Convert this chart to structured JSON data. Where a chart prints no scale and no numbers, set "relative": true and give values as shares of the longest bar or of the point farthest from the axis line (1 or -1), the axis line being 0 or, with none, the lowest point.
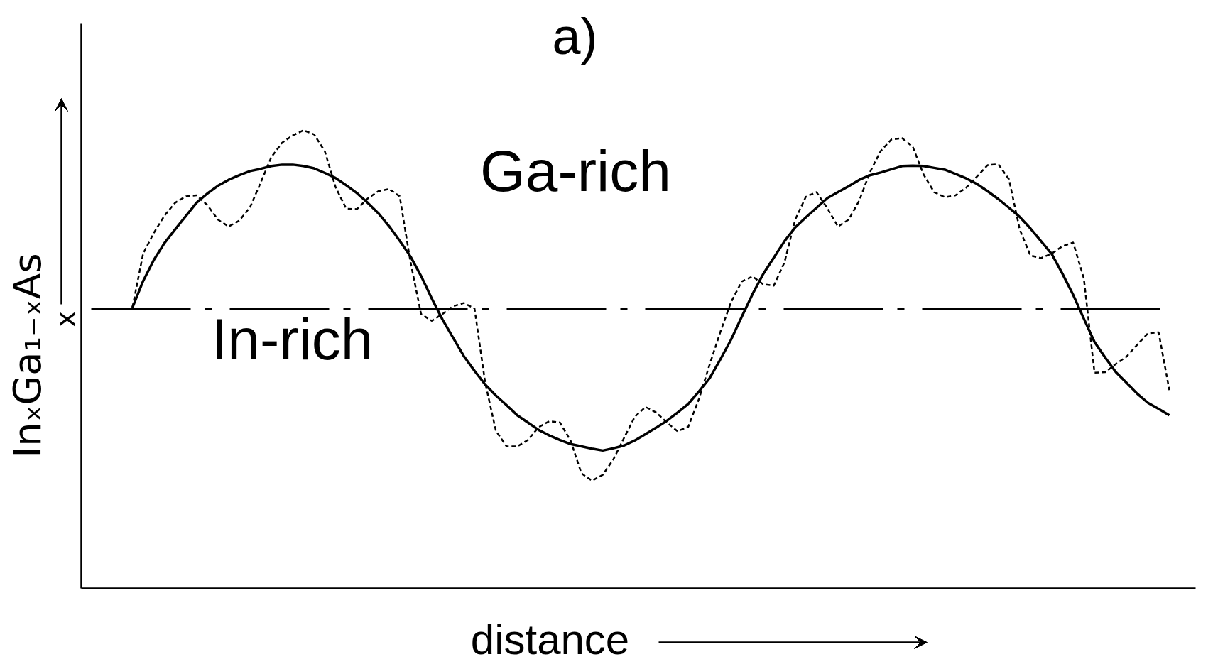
{
  "chart_data": {
    "type": "line",
    "title": "a)",
    "xlabel": "distance",
    "ylabel": "InₓGa₁₋ₓAs",
    "annotations": [
      "Ga-rich",
      "In-rich",
      "x"
    ],
    "relative": true,
    "categories": [
      null,
      null,
      null,
      null,
      null,
      null,
      null,
      null,
      null,
      null,
      null,
      null,
      null,
      null,
      null,
      null,
      null,
      null,
      null,
      null,
      null,
      null,
      null,
      null,
      null,
      null,
      null,
      null,
      null,
      null,
      null,
      null,
      null,
      null,
      null,
      null,
      null,
      null,
      null,
      null,
      null,
      null,
      null,
      null,
      null,
      null,
      null,
      null,
      null,
      null,
      null,
      null,
      null,
      null,
      null,
      null,
      null,
      null,
      null,
      null,
      null,
      null,
      null,
      null,
      null,
      null,
      null,
      null,
      null,
      null,
      null,
      null,
      null,
      null,
      null,
      null,
      null,
      null,
      null,
      null,
      null,
      null,
      null,
      null,
      null,
      null,
      null,
      null,
      null,
      null,
      null,
      null,
      null,
      null,
      null,
      null,
      null,
      null
    ],
    "series": [
      {
        "color": "#000000",
        "line_style": "solid",
        "values": [
          0.613,
          0.671,
          0.717,
          0.754,
          0.784,
          0.813,
          0.842,
          0.862,
          0.879,
          0.892,
          0.902,
          0.911,
          0.916,
          0.922,
          0.925,
          0.925,
          0.922,
          0.917,
          0.907,
          0.896,
          0.88,
          0.863,
          0.842,
          0.819,
          0.791,
          0.759,
          0.725,
          0.682,
          0.633,
          0.587,
          0.547,
          0.507,
          0.475,
          0.445,
          0.421,
          0.4,
          0.378,
          0.362,
          0.346,
          0.334,
          0.324,
          0.315,
          0.31,
          0.305,
          0.301,
          0.306,
          0.312,
          0.323,
          0.337,
          0.351,
          0.366,
          0.384,
          0.403,
          0.43,
          0.459,
          0.5,
          0.543,
          0.593,
          0.642,
          0.686,
          0.722,
          0.758,
          0.788,
          0.81,
          0.831,
          0.852,
          0.865,
          0.878,
          0.892,
          0.902,
          0.908,
          0.915,
          0.922,
          0.923,
          0.922,
          0.918,
          0.914,
          0.905,
          0.895,
          0.883,
          0.867,
          0.85,
          0.831,
          0.811,
          0.786,
          0.758,
          0.73,
          0.687,
          0.641,
          0.589,
          0.538,
          0.504,
          0.472,
          0.449,
          0.425,
          0.405,
          0.392,
          0.378
        ]
      },
      {
        "color": "#000000",
        "line_style": "dashed",
        "values": [
          0.613,
          0.731,
          0.776,
          0.814,
          0.842,
          0.856,
          0.858,
          0.837,
          0.805,
          0.79,
          0.803,
          0.832,
          0.886,
          0.942,
          0.973,
          0.989,
          1.0,
          0.991,
          0.954,
          0.876,
          0.829,
          0.828,
          0.851,
          0.867,
          0.872,
          0.856,
          0.714,
          0.599,
          0.584,
          0.599,
          0.616,
          0.623,
          0.611,
          0.449,
          0.344,
          0.31,
          0.31,
          0.324,
          0.352,
          0.365,
          0.362,
          0.322,
          0.251,
          0.235,
          0.248,
          0.282,
          0.329,
          0.375,
          0.396,
          0.384,
          0.362,
          0.343,
          0.353,
          0.414,
          0.489,
          0.56,
          0.625,
          0.67,
          0.681,
          0.664,
          0.661,
          0.712,
          0.805,
          0.855,
          0.865,
          0.83,
          0.79,
          0.805,
          0.847,
          0.909,
          0.955,
          0.98,
          0.983,
          0.964,
          0.904,
          0.865,
          0.854,
          0.858,
          0.875,
          0.899,
          0.924,
          0.926,
          0.893,
          0.784,
          0.727,
          0.721,
          0.731,
          0.747,
          0.755,
          0.677,
          0.471,
          0.472,
          0.49,
          0.506,
          0.532,
          0.557,
          0.559,
          0.433
        ]
      }
    ],
    "ref_lines": [
      {
        "axis": "y",
        "value": 0.61,
        "color": "#000000",
        "line_style": "dashed"
      }
    ]
  }
}
